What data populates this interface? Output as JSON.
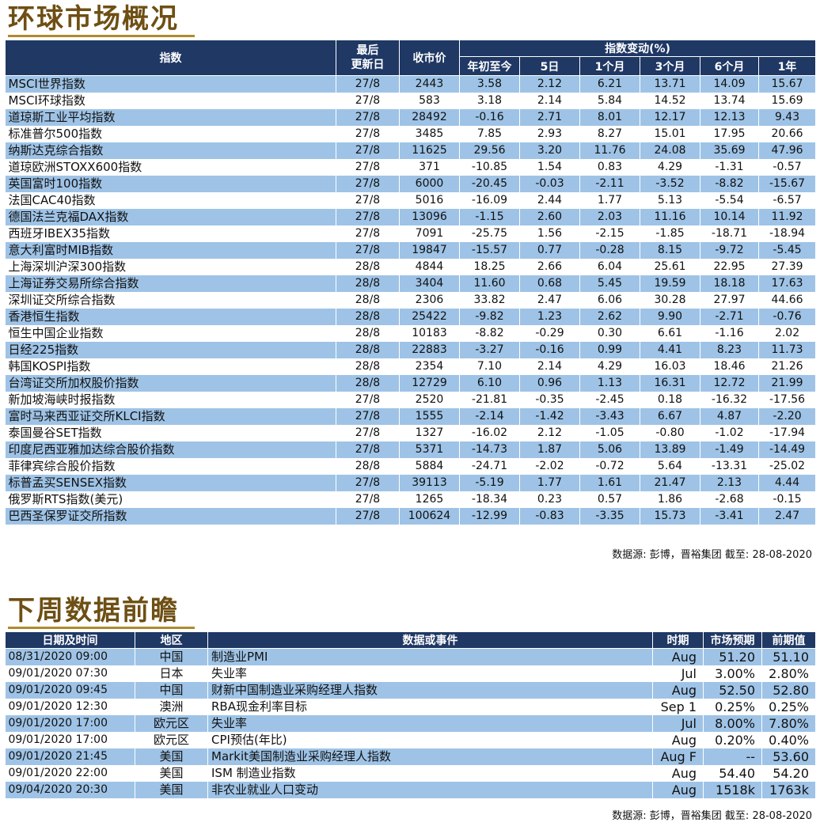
{
  "global": {
    "title": "环球市场概况",
    "headers": {
      "index": "指数",
      "updated_line1": "最后",
      "updated_line2": "更新日",
      "close": "收市价",
      "change_group": "指数变动(%)",
      "ytd": "年初至今",
      "d5": "5日",
      "m1": "1个月",
      "m3": "3个月",
      "m6": "6个月",
      "y1": "1年"
    },
    "rows": [
      [
        "MSCI世界指数",
        "27/8",
        "2443",
        "3.58",
        "2.12",
        "6.21",
        "13.71",
        "14.09",
        "15.67"
      ],
      [
        "MSCI环球指数",
        "27/8",
        "583",
        "3.18",
        "2.14",
        "5.84",
        "14.52",
        "13.74",
        "15.69"
      ],
      [
        "道琼斯工业平均指数",
        "27/8",
        "28492",
        "-0.16",
        "2.71",
        "8.01",
        "12.17",
        "12.13",
        "9.43"
      ],
      [
        "标准普尔500指数",
        "27/8",
        "3485",
        "7.85",
        "2.93",
        "8.27",
        "15.01",
        "17.95",
        "20.66"
      ],
      [
        "纳斯达克综合指数",
        "27/8",
        "11625",
        "29.56",
        "3.20",
        "11.76",
        "24.08",
        "35.69",
        "47.96"
      ],
      [
        "道琼欧洲STOXX600指数",
        "27/8",
        "371",
        "-10.85",
        "1.54",
        "0.83",
        "4.29",
        "-1.31",
        "-0.57"
      ],
      [
        "英国富时100指数",
        "27/8",
        "6000",
        "-20.45",
        "-0.03",
        "-2.11",
        "-3.52",
        "-8.82",
        "-15.67"
      ],
      [
        "法国CAC40指数",
        "27/8",
        "5016",
        "-16.09",
        "2.44",
        "1.77",
        "5.13",
        "-5.54",
        "-6.57"
      ],
      [
        "德国法兰克福DAX指数",
        "27/8",
        "13096",
        "-1.15",
        "2.60",
        "2.03",
        "11.16",
        "10.14",
        "11.92"
      ],
      [
        "西班牙IBEX35指数",
        "27/8",
        "7091",
        "-25.75",
        "1.56",
        "-2.15",
        "-1.85",
        "-18.71",
        "-18.94"
      ],
      [
        "意大利富时MIB指数",
        "27/8",
        "19847",
        "-15.57",
        "0.77",
        "-0.28",
        "8.15",
        "-9.72",
        "-5.45"
      ],
      [
        "上海深圳沪深300指数",
        "28/8",
        "4844",
        "18.25",
        "2.66",
        "6.04",
        "25.61",
        "22.95",
        "27.39"
      ],
      [
        "上海证券交易所综合指数",
        "28/8",
        "3404",
        "11.60",
        "0.68",
        "5.45",
        "19.59",
        "18.18",
        "17.63"
      ],
      [
        "深圳证交所综合指数",
        "28/8",
        "2306",
        "33.82",
        "2.47",
        "6.06",
        "30.28",
        "27.97",
        "44.66"
      ],
      [
        "香港恒生指数",
        "28/8",
        "25422",
        "-9.82",
        "1.23",
        "2.62",
        "9.90",
        "-2.71",
        "-0.76"
      ],
      [
        "恒生中国企业指数",
        "28/8",
        "10183",
        "-8.82",
        "-0.29",
        "0.30",
        "6.61",
        "-1.16",
        "2.02"
      ],
      [
        "日经225指数",
        "28/8",
        "22883",
        "-3.27",
        "-0.16",
        "0.99",
        "4.41",
        "8.23",
        "11.73"
      ],
      [
        "韩国KOSPI指数",
        "28/8",
        "2354",
        "7.10",
        "2.14",
        "4.29",
        "16.03",
        "18.46",
        "21.26"
      ],
      [
        "台湾证交所加权股价指数",
        "28/8",
        "12729",
        "6.10",
        "0.96",
        "1.13",
        "16.31",
        "12.72",
        "21.99"
      ],
      [
        "新加坡海峡时报指数",
        "27/8",
        "2520",
        "-21.81",
        "-0.35",
        "-2.45",
        "0.18",
        "-16.32",
        "-17.56"
      ],
      [
        "富时马来西亚证交所KLCI指数",
        "27/8",
        "1555",
        "-2.14",
        "-1.42",
        "-3.43",
        "6.67",
        "4.87",
        "-2.20"
      ],
      [
        "泰国曼谷SET指数",
        "27/8",
        "1327",
        "-16.02",
        "2.12",
        "-1.05",
        "-0.80",
        "-1.02",
        "-17.94"
      ],
      [
        "印度尼西亚雅加达综合股价指数",
        "27/8",
        "5371",
        "-14.73",
        "1.87",
        "5.06",
        "13.89",
        "-1.49",
        "-14.49"
      ],
      [
        "菲律宾综合股价指数",
        "28/8",
        "5884",
        "-24.71",
        "-2.02",
        "-0.72",
        "5.64",
        "-13.31",
        "-25.02"
      ],
      [
        "标普孟买SENSEX指数",
        "27/8",
        "39113",
        "-5.19",
        "1.77",
        "1.61",
        "21.47",
        "2.13",
        "4.44"
      ],
      [
        "俄罗斯RTS指数(美元)",
        "27/8",
        "1265",
        "-18.34",
        "0.23",
        "0.57",
        "1.86",
        "-2.68",
        "-0.15"
      ],
      [
        "巴西圣保罗证交所指数",
        "27/8",
        "100624",
        "-12.99",
        "-0.83",
        "-3.35",
        "15.73",
        "-3.41",
        "2.47"
      ]
    ],
    "source": "数据源: 彭博，晋裕集团 截至: 28-08-2020"
  },
  "week": {
    "title": "下周数据前瞻",
    "headers": {
      "datetime": "日期及时间",
      "region": "地区",
      "event": "数据或事件",
      "period": "时期",
      "forecast": "市场预期",
      "previous": "前期值"
    },
    "rows": [
      [
        "08/31/2020 09:00",
        "中国",
        "制造业PMI",
        "Aug",
        "51.20",
        "51.10"
      ],
      [
        "09/01/2020 07:30",
        "日本",
        "失业率",
        "Jul",
        "3.00%",
        "2.80%"
      ],
      [
        "09/01/2020 09:45",
        "中国",
        "财新中国制造业采购经理人指数",
        "Aug",
        "52.50",
        "52.80"
      ],
      [
        "09/01/2020 12:30",
        "澳洲",
        "RBA现金利率目标",
        "Sep 1",
        "0.25%",
        "0.25%"
      ],
      [
        "09/01/2020 17:00",
        "欧元区",
        "失业率",
        "Jul",
        "8.00%",
        "7.80%"
      ],
      [
        "09/01/2020 17:00",
        "欧元区",
        "CPI预估(年比)",
        "Aug",
        "0.20%",
        "0.40%"
      ],
      [
        "09/01/2020 21:45",
        "美国",
        "Markit美国制造业采购经理人指数",
        "Aug F",
        "--",
        "53.60"
      ],
      [
        "09/01/2020 22:00",
        "美国",
        "ISM 制造业指数",
        "Aug",
        "54.40",
        "54.20"
      ],
      [
        "09/04/2020 20:30",
        "美国",
        "非农业就业人口变动",
        "Aug",
        "1518k",
        "1763k"
      ]
    ],
    "source": "数据源: 彭博，晋裕集团 截至: 28-08-2020"
  }
}
